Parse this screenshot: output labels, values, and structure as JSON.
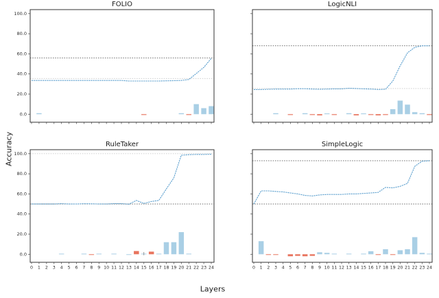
{
  "figure": {
    "xlabel": "Layers",
    "ylabel": "Accuracy",
    "background": "#ffffff"
  },
  "colors": {
    "line": "#5b9fce",
    "bar_blue": "#a9cfe5",
    "bar_red": "#e8745e",
    "ref_dark": "#555555",
    "ref_light": "#c6c6c6",
    "spine": "#333333",
    "text": "#2b2b2b"
  },
  "chart_data": [
    {
      "type": "line+bar",
      "title": "FOLIO",
      "xlabel": "Layers",
      "ylabel": "Accuracy",
      "x": [
        0,
        1,
        2,
        3,
        4,
        5,
        6,
        7,
        8,
        9,
        10,
        11,
        12,
        13,
        14,
        15,
        16,
        17,
        18,
        19,
        20,
        21,
        22,
        23,
        24
      ],
      "line": [
        33.5,
        33.5,
        33.5,
        33.5,
        33.5,
        33.5,
        33.5,
        33.5,
        33.5,
        33.5,
        33.5,
        33.5,
        33.5,
        33,
        33,
        33,
        33,
        33,
        33.2,
        33.3,
        33.5,
        34.5,
        40.5,
        46.5,
        55.5
      ],
      "ref_lines": [
        {
          "y": 56,
          "shade": "dark"
        },
        {
          "y": 35.5,
          "shade": "light"
        }
      ],
      "bars": [
        {
          "x": 1,
          "v": 1,
          "c": "blue"
        },
        {
          "x": 15,
          "v": -0.8,
          "c": "red"
        },
        {
          "x": 20,
          "v": 1,
          "c": "blue"
        },
        {
          "x": 21,
          "v": -0.8,
          "c": "red"
        },
        {
          "x": 22,
          "v": 10,
          "c": "blue"
        },
        {
          "x": 23,
          "v": 6,
          "c": "blue"
        },
        {
          "x": 24,
          "v": 8,
          "c": "blue"
        }
      ],
      "ylim": [
        -8,
        104
      ],
      "yticks": [
        0,
        20,
        40,
        60,
        80,
        100
      ],
      "show_ytick_labels": true,
      "show_xtick_labels": false,
      "grid": false
    },
    {
      "type": "line+bar",
      "title": "LogicNLI",
      "xlabel": "Layers",
      "ylabel": "Accuracy",
      "x": [
        0,
        1,
        2,
        3,
        4,
        5,
        6,
        7,
        8,
        9,
        10,
        11,
        12,
        13,
        14,
        15,
        16,
        17,
        18,
        19,
        20,
        21,
        22,
        23,
        24
      ],
      "line": [
        24.5,
        24.5,
        24.8,
        25,
        25,
        25,
        25.3,
        25.3,
        25,
        24.8,
        25,
        25.2,
        25.2,
        25.8,
        25.5,
        25.2,
        25,
        24.5,
        24.8,
        33,
        48,
        61,
        66.5,
        68,
        68
      ],
      "ref_lines": [
        {
          "y": 68,
          "shade": "dark"
        },
        {
          "y": 25.5,
          "shade": "light"
        }
      ],
      "bars": [
        {
          "x": 3,
          "v": 1,
          "c": "blue"
        },
        {
          "x": 5,
          "v": -0.8,
          "c": "red"
        },
        {
          "x": 7,
          "v": 1,
          "c": "blue"
        },
        {
          "x": 8,
          "v": -0.8,
          "c": "red"
        },
        {
          "x": 9,
          "v": -1.2,
          "c": "red"
        },
        {
          "x": 10,
          "v": 0.8,
          "c": "blue"
        },
        {
          "x": 11,
          "v": -0.8,
          "c": "red"
        },
        {
          "x": 13,
          "v": 1,
          "c": "blue"
        },
        {
          "x": 14,
          "v": -1.2,
          "c": "red"
        },
        {
          "x": 15,
          "v": 0.8,
          "c": "blue"
        },
        {
          "x": 16,
          "v": -0.8,
          "c": "red"
        },
        {
          "x": 17,
          "v": -1.2,
          "c": "red"
        },
        {
          "x": 18,
          "v": -0.8,
          "c": "red"
        },
        {
          "x": 19,
          "v": 5,
          "c": "blue"
        },
        {
          "x": 20,
          "v": 13.5,
          "c": "blue"
        },
        {
          "x": 21,
          "v": 9.5,
          "c": "blue"
        },
        {
          "x": 22,
          "v": 2,
          "c": "blue"
        },
        {
          "x": 23,
          "v": 1,
          "c": "blue"
        },
        {
          "x": 24,
          "v": -0.8,
          "c": "red"
        }
      ],
      "ylim": [
        -8,
        104
      ],
      "yticks": [
        0,
        20,
        40,
        60,
        80,
        100
      ],
      "show_ytick_labels": false,
      "show_xtick_labels": false,
      "grid": false
    },
    {
      "type": "line+bar",
      "title": "RuleTaker",
      "xlabel": "Layers",
      "ylabel": "Accuracy",
      "x": [
        0,
        1,
        2,
        3,
        4,
        5,
        6,
        7,
        8,
        9,
        10,
        11,
        12,
        13,
        14,
        15,
        16,
        17,
        18,
        19,
        20,
        21,
        22,
        23,
        24
      ],
      "line": [
        50,
        50,
        50,
        50,
        50.3,
        50,
        50,
        50.3,
        50.2,
        50,
        50,
        50.3,
        50.3,
        49.8,
        53.5,
        50.5,
        52.5,
        53.5,
        65,
        76,
        98.5,
        99,
        99.3,
        99.3,
        99.5
      ],
      "ref_lines": [
        {
          "y": 50,
          "shade": "dark"
        },
        {
          "y": 100,
          "shade": "light"
        }
      ],
      "bars": [
        {
          "x": 4,
          "v": 0.6,
          "c": "blue"
        },
        {
          "x": 7,
          "v": 0.6,
          "c": "blue"
        },
        {
          "x": 8,
          "v": -0.6,
          "c": "red"
        },
        {
          "x": 9,
          "v": 0.6,
          "c": "blue"
        },
        {
          "x": 11,
          "v": 0.6,
          "c": "blue"
        },
        {
          "x": 13,
          "v": -0.6,
          "c": "blue"
        },
        {
          "x": 14,
          "v": 3.2,
          "c": "red"
        },
        {
          "x": 15,
          "v": 0.6,
          "c": "blue",
          "err": 1.6
        },
        {
          "x": 16,
          "v": 2.6,
          "c": "red"
        },
        {
          "x": 17,
          "v": 0.6,
          "c": "blue"
        },
        {
          "x": 18,
          "v": 12,
          "c": "blue"
        },
        {
          "x": 19,
          "v": 12,
          "c": "blue"
        },
        {
          "x": 20,
          "v": 22,
          "c": "blue"
        },
        {
          "x": 21,
          "v": 0.6,
          "c": "blue"
        }
      ],
      "ylim": [
        -8,
        104
      ],
      "yticks": [
        0,
        20,
        40,
        60,
        80,
        100
      ],
      "show_ytick_labels": true,
      "show_xtick_labels": true,
      "grid": false
    },
    {
      "type": "line+bar",
      "title": "SimpleLogic",
      "xlabel": "Layers",
      "ylabel": "Accuracy",
      "x": [
        0,
        1,
        2,
        3,
        4,
        5,
        6,
        7,
        8,
        9,
        10,
        11,
        12,
        13,
        14,
        15,
        16,
        17,
        18,
        19,
        20,
        21,
        22,
        23,
        24
      ],
      "line": [
        50,
        63,
        63,
        62.5,
        62,
        61,
        60,
        58.5,
        58,
        59,
        59.5,
        59.5,
        59.5,
        60,
        60,
        60.5,
        61,
        61.5,
        66.5,
        66,
        67.5,
        70.5,
        87.5,
        92.5,
        93
      ],
      "ref_lines": [
        {
          "y": 93,
          "shade": "dark"
        },
        {
          "y": 50,
          "shade": "dark"
        }
      ],
      "bars": [
        {
          "x": 1,
          "v": 13,
          "c": "blue"
        },
        {
          "x": 2,
          "v": -0.6,
          "c": "red"
        },
        {
          "x": 3,
          "v": -0.6,
          "c": "red"
        },
        {
          "x": 5,
          "v": -2,
          "c": "red"
        },
        {
          "x": 6,
          "v": -1.6,
          "c": "red"
        },
        {
          "x": 7,
          "v": -2,
          "c": "red"
        },
        {
          "x": 8,
          "v": -1.6,
          "c": "red"
        },
        {
          "x": 9,
          "v": 2,
          "c": "blue"
        },
        {
          "x": 10,
          "v": 1.4,
          "c": "blue"
        },
        {
          "x": 11,
          "v": 0.6,
          "c": "blue"
        },
        {
          "x": 13,
          "v": 0.6,
          "c": "blue"
        },
        {
          "x": 15,
          "v": 0.6,
          "c": "blue"
        },
        {
          "x": 16,
          "v": 3,
          "c": "blue"
        },
        {
          "x": 17,
          "v": -0.6,
          "c": "red"
        },
        {
          "x": 18,
          "v": 5,
          "c": "blue"
        },
        {
          "x": 19,
          "v": -0.6,
          "c": "red"
        },
        {
          "x": 20,
          "v": 4,
          "c": "blue"
        },
        {
          "x": 21,
          "v": 5,
          "c": "blue"
        },
        {
          "x": 22,
          "v": 17,
          "c": "blue"
        },
        {
          "x": 23,
          "v": 1.4,
          "c": "blue"
        },
        {
          "x": 24,
          "v": 0.6,
          "c": "blue"
        }
      ],
      "ylim": [
        -8,
        104
      ],
      "yticks": [
        0,
        20,
        40,
        60,
        80,
        100
      ],
      "show_ytick_labels": false,
      "show_xtick_labels": true,
      "grid": false
    }
  ]
}
